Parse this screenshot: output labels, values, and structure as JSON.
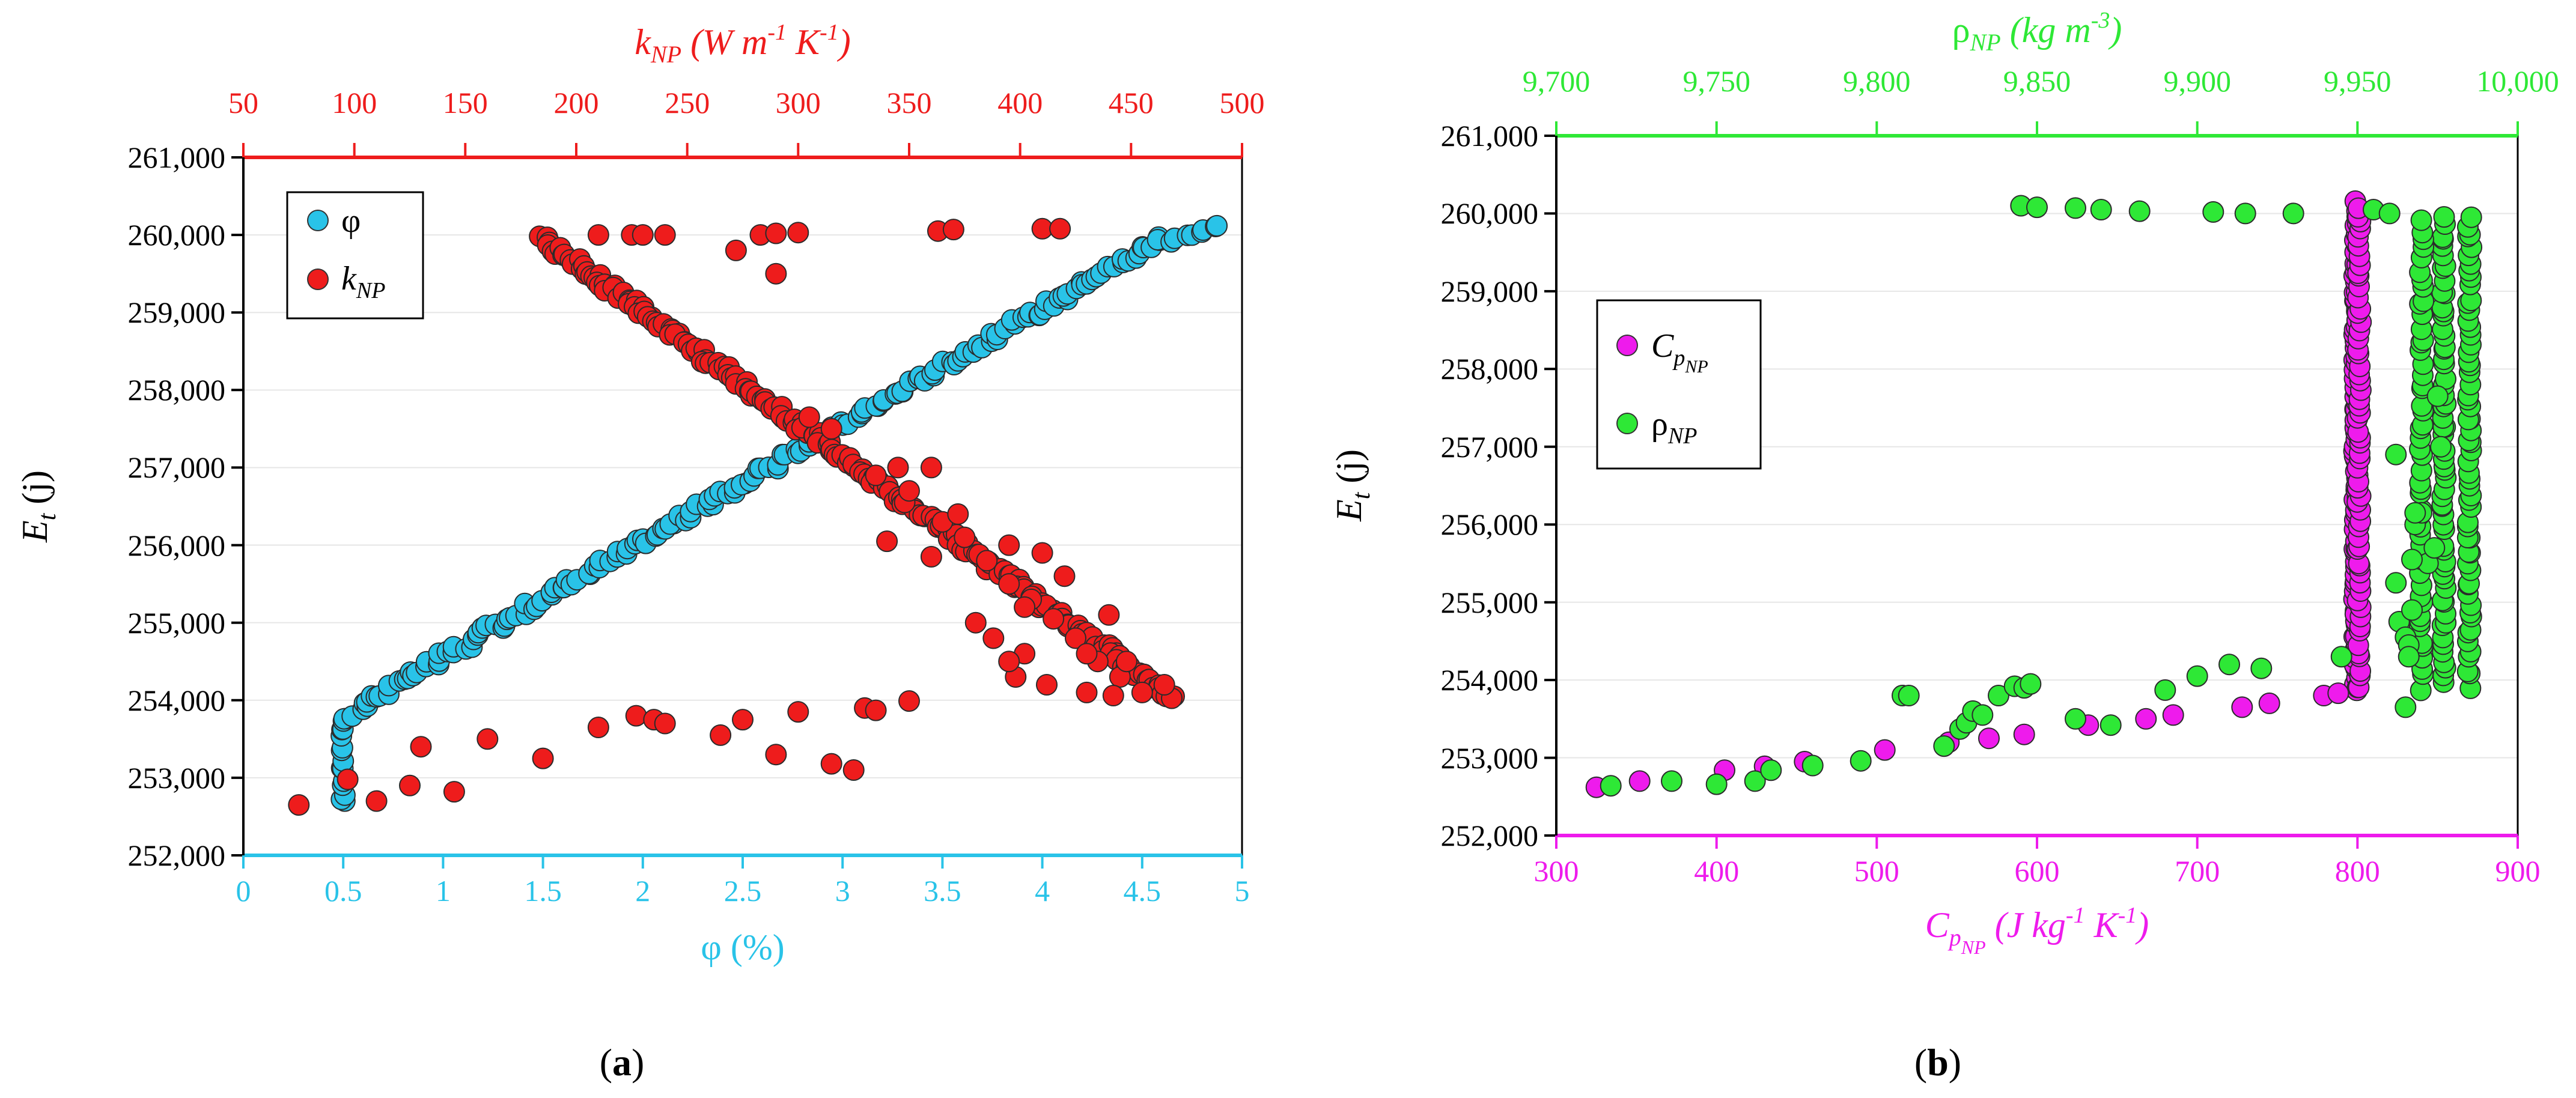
{
  "colors": {
    "cyan": "#29c3e8",
    "red": "#ee1c1c",
    "green": "#2ee836",
    "magenta": "#ee1bec",
    "black": "#000000",
    "grid": "#e6e6e6"
  },
  "panels": {
    "a": {
      "label_open": "(",
      "label_letter": "a",
      "label_close": ")"
    },
    "b": {
      "label_open": "(",
      "label_letter": "b",
      "label_close": ")"
    }
  },
  "chart_data": [
    {
      "type": "scatter",
      "panel": "a",
      "ylabel": {
        "main": "E",
        "sub": "t",
        "rest": " (j)"
      },
      "y_ticks": [
        "252,000",
        "253,000",
        "254,000",
        "255,000",
        "256,000",
        "257,000",
        "258,000",
        "259,000",
        "260,000",
        "261,000"
      ],
      "ylim": [
        252000,
        261000
      ],
      "x_bottom": {
        "label": "φ (%)",
        "ticks": [
          "0",
          "0.5",
          "1",
          "1.5",
          "2",
          "2.5",
          "3",
          "3.5",
          "4",
          "4.5",
          "5"
        ],
        "lim": [
          0,
          5
        ]
      },
      "x_top": {
        "label_main": "k",
        "label_sub": "NP",
        "label_rest": " (W m",
        "sup1": "-1",
        "mid": " K",
        "sup2": "-1",
        "close": ")",
        "ticks": [
          "50",
          "100",
          "150",
          "200",
          "250",
          "300",
          "350",
          "400",
          "450",
          "500"
        ],
        "lim": [
          50,
          500
        ]
      },
      "legend": {
        "position": "top-left",
        "items": [
          {
            "main": "φ",
            "sub": ""
          },
          {
            "main": "k",
            "sub": "NP"
          }
        ]
      },
      "series": [
        {
          "name": "φ",
          "axis": "bottom",
          "color": "cyan",
          "segments": [
            {
              "from": [
                0.5,
                252650
              ],
              "to": [
                0.5,
                253750
              ],
              "n": 14
            },
            {
              "from": [
                0.5,
                253750
              ],
              "to": [
                0.6,
                253950
              ],
              "n": 5
            },
            {
              "from": [
                0.6,
                253950
              ],
              "to": [
                4.6,
                259950
              ],
              "n": 170
            },
            {
              "from": [
                4.6,
                259950
              ],
              "to": [
                4.88,
                260100
              ],
              "n": 9
            }
          ]
        },
        {
          "name": "k_NP",
          "axis": "top",
          "color": "red",
          "segments": [
            {
              "from": [
                185,
                259950
              ],
              "to": [
                470,
                254000
              ],
              "n": 210
            }
          ],
          "points": [
            [
              75,
              252650
            ],
            [
              97,
              252980
            ],
            [
              110,
              252700
            ],
            [
              125,
              252900
            ],
            [
              130,
              253400
            ],
            [
              145,
              252820
            ],
            [
              160,
              253500
            ],
            [
              185,
              253250
            ],
            [
              210,
              253650
            ],
            [
              227,
              253800
            ],
            [
              235,
              253750
            ],
            [
              240,
              253700
            ],
            [
              265,
              253550
            ],
            [
              290,
              253300
            ],
            [
              315,
              253180
            ],
            [
              325,
              253100
            ],
            [
              330,
              253900
            ],
            [
              335,
              253870
            ],
            [
              350,
              253990
            ],
            [
              275,
              253750
            ],
            [
              300,
              253850
            ],
            [
              210,
              260000
            ],
            [
              225,
              260000
            ],
            [
              230,
              260000
            ],
            [
              240,
              260000
            ],
            [
              283,
              260000
            ],
            [
              290,
              260020
            ],
            [
              300,
              260030
            ],
            [
              363,
              260050
            ],
            [
              370,
              260070
            ],
            [
              410,
              260080
            ],
            [
              418,
              260080
            ],
            [
              272,
              259800
            ],
            [
              290,
              259500
            ],
            [
              305,
              257650
            ],
            [
              340,
              256050
            ],
            [
              348,
              256550
            ],
            [
              360,
              255850
            ],
            [
              345,
              257000
            ],
            [
              350,
              256700
            ],
            [
              365,
              256300
            ],
            [
              375,
              256100
            ],
            [
              385,
              255800
            ],
            [
              395,
              255500
            ],
            [
              405,
              255300
            ],
            [
              415,
              255050
            ],
            [
              425,
              254800
            ],
            [
              435,
              254500
            ],
            [
              445,
              254300
            ],
            [
              420,
              255600
            ],
            [
              410,
              255900
            ],
            [
              395,
              256000
            ],
            [
              430,
              254600
            ],
            [
              440,
              255100
            ],
            [
              388,
              254800
            ],
            [
              398,
              254300
            ],
            [
              402,
              254600
            ],
            [
              412,
              254200
            ],
            [
              455,
              254100
            ],
            [
              465,
              254200
            ],
            [
              442,
              254060
            ],
            [
              380,
              255000
            ],
            [
              372,
              256400
            ],
            [
              402,
              255200
            ],
            [
              430,
              254100
            ],
            [
              360,
              257000
            ],
            [
              315,
              257500
            ],
            [
              335,
              256900
            ],
            [
              395,
              254500
            ],
            [
              448,
              254500
            ]
          ]
        }
      ]
    },
    {
      "type": "scatter",
      "panel": "b",
      "ylabel": {
        "main": "E",
        "sub": "t",
        "rest": " (j)"
      },
      "y_ticks": [
        "252,000",
        "253,000",
        "254,000",
        "255,000",
        "256,000",
        "257,000",
        "258,000",
        "259,000",
        "260,000",
        "261,000"
      ],
      "ylim": [
        252000,
        261000
      ],
      "x_bottom": {
        "label_main": "C",
        "label_sub": "p",
        "label_subsub": "NP",
        "label_rest": " (J kg",
        "sup1": "-1",
        "mid": " K",
        "sup2": "-1",
        "close": ")",
        "ticks": [
          "300",
          "400",
          "500",
          "600",
          "700",
          "800",
          "900"
        ],
        "lim": [
          300,
          900
        ]
      },
      "x_top": {
        "label_main": "ρ",
        "label_sub": "NP",
        "label_rest": " (kg m",
        "sup1": "-3",
        "close": ")",
        "ticks": [
          "9,700",
          "9,750",
          "9,800",
          "9,850",
          "9,900",
          "9,950",
          "10,000"
        ],
        "lim": [
          9700,
          10000
        ]
      },
      "legend": {
        "position": "center-left",
        "items": [
          {
            "main": "C",
            "sub": "p",
            "subsub": "NP"
          },
          {
            "main": "ρ",
            "sub": "NP",
            "subsub": ""
          }
        ]
      },
      "series": [
        {
          "name": "C_p_NP",
          "axis": "bottom",
          "color": "magenta",
          "segments": [
            {
              "from": [
                799,
                253850
              ],
              "to": [
                799,
                260100
              ],
              "n": 90
            },
            {
              "from": [
                801,
                253850
              ],
              "to": [
                801,
                260100
              ],
              "n": 60
            }
          ],
          "points": [
            [
              325,
              252620
            ],
            [
              352,
              252700
            ],
            [
              405,
              252840
            ],
            [
              430,
              252890
            ],
            [
              455,
              252950
            ],
            [
              505,
              253100
            ],
            [
              545,
              253200
            ],
            [
              570,
              253250
            ],
            [
              592,
              253300
            ],
            [
              632,
              253420
            ],
            [
              668,
              253500
            ],
            [
              685,
              253550
            ],
            [
              728,
              253650
            ],
            [
              745,
              253700
            ],
            [
              779,
              253800
            ],
            [
              788,
              253830
            ]
          ]
        },
        {
          "name": "ρ_NP",
          "axis": "top",
          "color": "green",
          "segments": [
            {
              "from": [
                9977,
                253950
              ],
              "to": [
                9977,
                259950
              ],
              "n": 60
            },
            {
              "from": [
                9985,
                253950
              ],
              "to": [
                9985,
                259950
              ],
              "n": 60
            },
            {
              "from": [
                9970,
                253900
              ],
              "to": [
                9970,
                259900
              ],
              "n": 50
            }
          ],
          "points": [
            [
              9717,
              252640
            ],
            [
              9736,
              252700
            ],
            [
              9750,
              252660
            ],
            [
              9762,
              252700
            ],
            [
              9767,
              252840
            ],
            [
              9780,
              252900
            ],
            [
              9795,
              252960
            ],
            [
              9808,
              253800
            ],
            [
              9810,
              253800
            ],
            [
              9821,
              253150
            ],
            [
              9826,
              253370
            ],
            [
              9828,
              253450
            ],
            [
              9830,
              253600
            ],
            [
              9833,
              253550
            ],
            [
              9838,
              253800
            ],
            [
              9843,
              253920
            ],
            [
              9846,
              253900
            ],
            [
              9848,
              253950
            ],
            [
              9845,
              260100
            ],
            [
              9850,
              260080
            ],
            [
              9862,
              260070
            ],
            [
              9870,
              260050
            ],
            [
              9882,
              260030
            ],
            [
              9905,
              260020
            ],
            [
              9915,
              260000
            ],
            [
              9930,
              260000
            ],
            [
              9862,
              253500
            ],
            [
              9873,
              253420
            ],
            [
              9890,
              253870
            ],
            [
              9900,
              254050
            ],
            [
              9910,
              254200
            ],
            [
              9920,
              254150
            ],
            [
              9945,
              254300
            ],
            [
              9955,
              260050
            ],
            [
              9960,
              260000
            ],
            [
              9962,
              255250
            ],
            [
              9963,
              254750
            ],
            [
              9965,
              254550
            ],
            [
              9966,
              254450
            ],
            [
              9967,
              254900
            ],
            [
              9968,
              256000
            ],
            [
              9970,
              256150
            ],
            [
              9972,
              255500
            ],
            [
              9974,
              255700
            ],
            [
              9975,
              257650
            ],
            [
              9976,
              257000
            ],
            [
              9962,
              256900
            ],
            [
              9965,
              253650
            ],
            [
              9966,
              254300
            ],
            [
              9967,
              255550
            ],
            [
              9968,
              256150
            ]
          ]
        }
      ]
    }
  ]
}
